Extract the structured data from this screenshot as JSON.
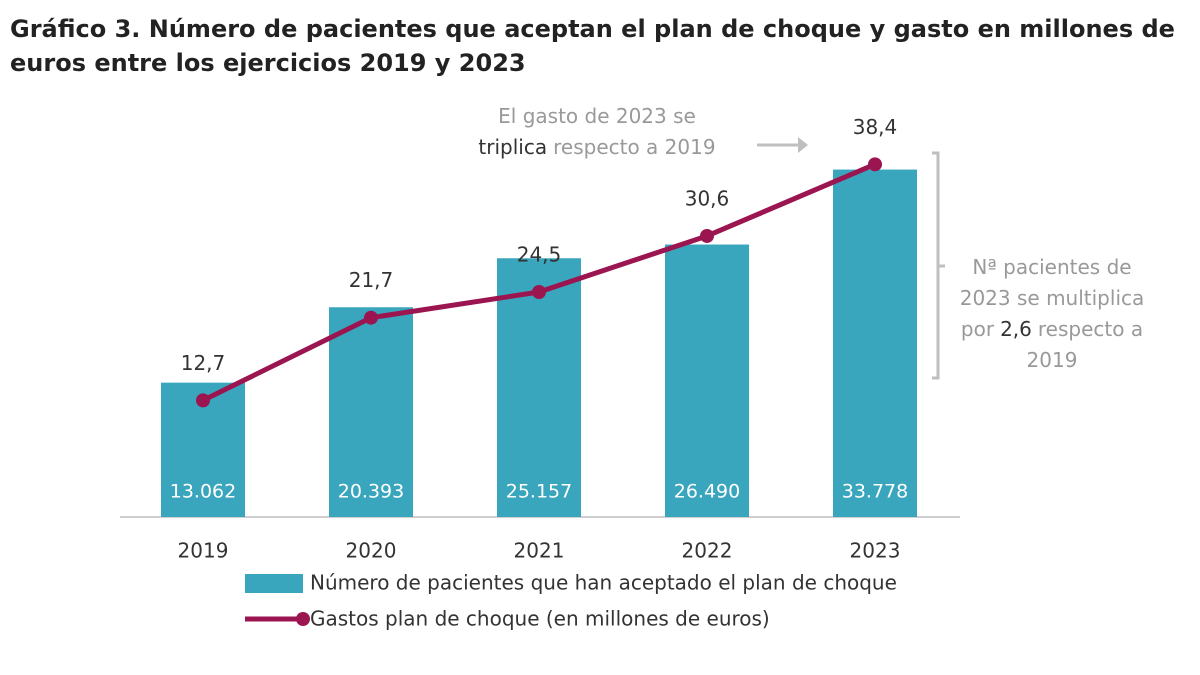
{
  "chart_data": {
    "type": "bar_line",
    "title": "Gráfico 3. Número de pacientes que aceptan el plan de choque y gasto en millones de euros entre los ejercicios 2019 y 2023",
    "categories": [
      "2019",
      "2020",
      "2021",
      "2022",
      "2023"
    ],
    "series": [
      {
        "name": "Número de pacientes que han aceptado el plan de choque",
        "type": "bar",
        "color": "#3aa6bd",
        "values": [
          13062,
          20393,
          25157,
          26490,
          33778
        ],
        "value_labels": [
          "13.062",
          "20.393",
          "25.157",
          "26.490",
          "33.778"
        ]
      },
      {
        "name": "Gastos plan de choque (en millones de euros)",
        "type": "line",
        "axis": "y2",
        "color": "#9b1550",
        "values": [
          12.7,
          21.7,
          24.5,
          30.6,
          38.4
        ],
        "value_labels": [
          "12,7",
          "21,7",
          "24,5",
          "30,6",
          "38,4"
        ]
      }
    ],
    "ylim": [
      0,
      35000
    ],
    "y2lim": [
      0,
      39.2
    ],
    "annotations": [
      {
        "lines": [
          [
            "El gasto de 2023 se"
          ],
          [
            "triplica",
            "respecto a 2019"
          ]
        ]
      },
      {
        "lines": [
          [
            "Nª pacientes de"
          ],
          [
            "2023 se multiplica"
          ],
          [
            "por",
            "2,6",
            "respecto a"
          ],
          [
            "2019"
          ]
        ]
      }
    ]
  }
}
